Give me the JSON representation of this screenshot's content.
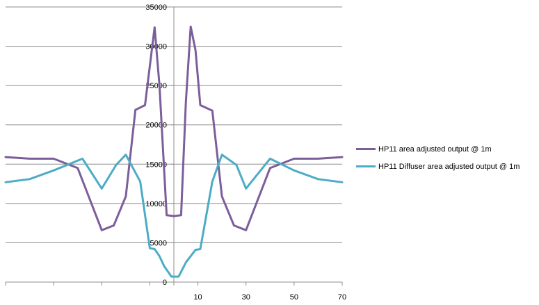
{
  "chart_data": {
    "type": "line",
    "title": "",
    "xlabel": "",
    "ylabel": "",
    "xlim": [
      -70,
      70
    ],
    "ylim": [
      0,
      35000
    ],
    "yticks": [
      0,
      5000,
      10000,
      15000,
      20000,
      25000,
      30000,
      35000
    ],
    "xticks": [
      -70,
      -50,
      -30,
      -10,
      10,
      30,
      50,
      70
    ],
    "xtick_labels": [
      "",
      "",
      "",
      "",
      "10",
      "30",
      "50",
      "70"
    ],
    "xtick_label_values": [
      10,
      30,
      50,
      70
    ],
    "grid": "horizontal",
    "legend_position": "right",
    "series": [
      {
        "name": "HP11 area adjusted output @ 1m",
        "color": "#7b5e9a",
        "points": [
          [
            -70,
            15900
          ],
          [
            -60,
            15700
          ],
          [
            -50,
            15700
          ],
          [
            -40,
            14500
          ],
          [
            -30,
            6600
          ],
          [
            -25,
            7200
          ],
          [
            -20,
            10900
          ],
          [
            -16,
            21900
          ],
          [
            -12,
            22500
          ],
          [
            -8,
            32400
          ],
          [
            -6,
            25000
          ],
          [
            -3,
            8500
          ],
          [
            0,
            8400
          ],
          [
            3,
            8500
          ],
          [
            5,
            23000
          ],
          [
            7,
            32500
          ],
          [
            9,
            29500
          ],
          [
            11,
            22500
          ],
          [
            16,
            21800
          ],
          [
            20,
            10900
          ],
          [
            25,
            7200
          ],
          [
            30,
            6600
          ],
          [
            40,
            14500
          ],
          [
            50,
            15700
          ],
          [
            60,
            15700
          ],
          [
            70,
            15900
          ]
        ]
      },
      {
        "name": "HP11 Diffuser area adjusted output @ 1m",
        "color": "#4bacc6",
        "points": [
          [
            -70,
            12700
          ],
          [
            -60,
            13100
          ],
          [
            -50,
            14200
          ],
          [
            -38,
            15700
          ],
          [
            -30,
            11900
          ],
          [
            -24,
            14900
          ],
          [
            -20,
            16200
          ],
          [
            -14,
            12800
          ],
          [
            -10,
            4300
          ],
          [
            -8,
            4200
          ],
          [
            -6,
            3300
          ],
          [
            -4,
            2000
          ],
          [
            -1,
            700
          ],
          [
            2,
            700
          ],
          [
            5,
            2500
          ],
          [
            9,
            4100
          ],
          [
            11,
            4200
          ],
          [
            16,
            12800
          ],
          [
            20,
            16200
          ],
          [
            26,
            14900
          ],
          [
            30,
            11900
          ],
          [
            40,
            15700
          ],
          [
            50,
            14200
          ],
          [
            60,
            13100
          ],
          [
            70,
            12700
          ]
        ]
      }
    ]
  }
}
